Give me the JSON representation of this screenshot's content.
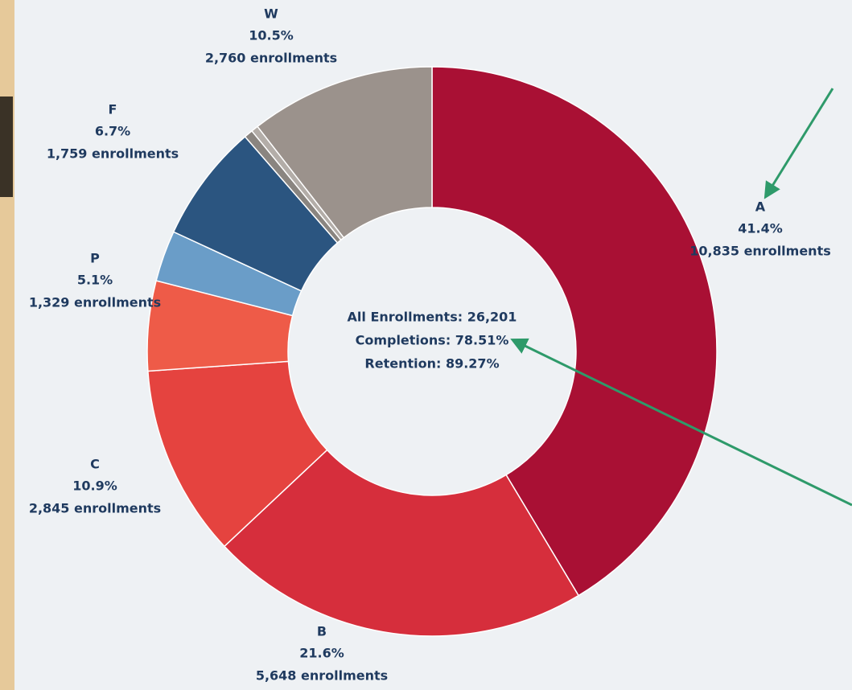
{
  "chart_data": {
    "type": "donut",
    "categories": [
      "A",
      "B",
      "C",
      "P",
      null,
      "F",
      null,
      null,
      "W"
    ],
    "values": [
      41.4,
      21.6,
      10.9,
      5.1,
      2.9,
      6.7,
      0.5,
      0.4,
      10.5
    ],
    "value_labels": [
      "41.4%",
      "21.6%",
      "10.9%",
      "5.1%",
      null,
      "6.7%",
      null,
      null,
      "10.5%"
    ],
    "enrollment_labels": [
      "10,835 enrollments",
      "5,648 enrollments",
      "2,845 enrollments",
      "1,329 enrollments",
      null,
      "1,759 enrollments",
      null,
      null,
      "2,760 enrollments"
    ],
    "colors": [
      "#a91034",
      "#d62e3c",
      "#e5433f",
      "#ee5b48",
      "#6a9dc8",
      "#2b5580",
      "#8a8580",
      "#b3ada8",
      "#9b928c"
    ],
    "center_text": [
      "All Enrollments: 26,201",
      "Completions: 78.51%",
      "Retention: 89.27%"
    ]
  }
}
